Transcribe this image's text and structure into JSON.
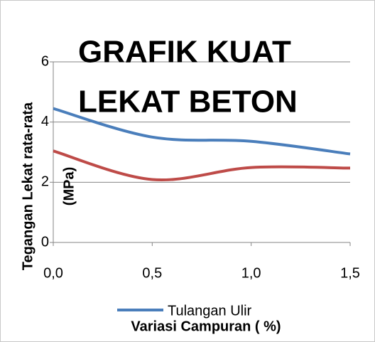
{
  "chart_data": {
    "type": "line",
    "title_lines": [
      "GRAFIK KUAT",
      "LEKAT BETON"
    ],
    "ylabel_lines": [
      "Tegangan Lekat rata-rata",
      "(MPa)"
    ],
    "xlabel": "Variasi Campuran ( %)",
    "x": [
      0,
      0.5,
      1.0,
      1.5
    ],
    "xlim": [
      0,
      1.5
    ],
    "xticks": [
      {
        "value": 0,
        "label": "0,0"
      },
      {
        "value": 0.5,
        "label": "0,5"
      },
      {
        "value": 1.0,
        "label": "1,0"
      },
      {
        "value": 1.5,
        "label": "1,5"
      }
    ],
    "ylim": [
      0,
      6
    ],
    "yticks": [
      0,
      2,
      4,
      6
    ],
    "grid": true,
    "smooth": true,
    "series": [
      {
        "name": "Tulangan Ulir",
        "color": "#4a7ebb",
        "values": [
          4.45,
          3.5,
          3.36,
          2.94
        ]
      },
      {
        "color": "#be4b48",
        "values": [
          3.04,
          2.09,
          2.49,
          2.47
        ]
      }
    ]
  }
}
